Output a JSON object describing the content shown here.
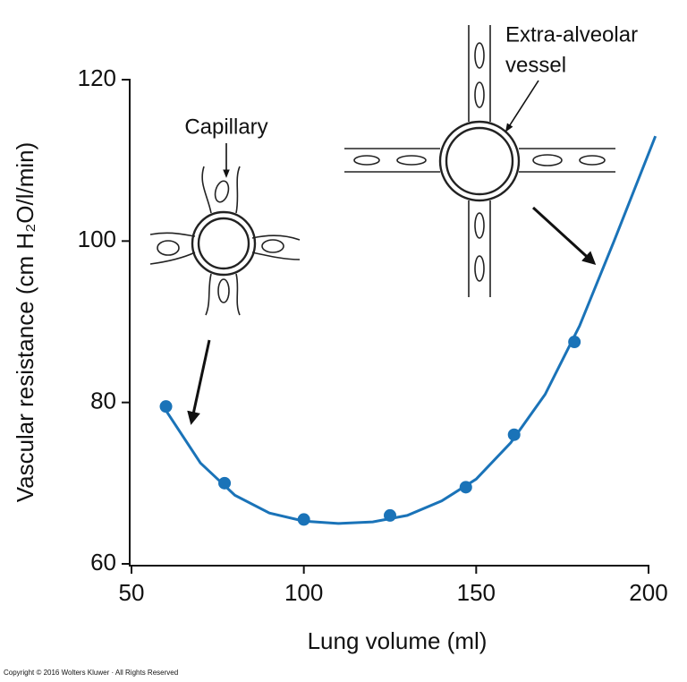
{
  "chart_data": {
    "type": "scatter",
    "xlabel": "Lung volume (ml)",
    "ylabel": "Vascular resistance (cm H₂O/l/min)",
    "xlim": [
      50,
      200
    ],
    "ylim": [
      60,
      120
    ],
    "xticks": [
      50,
      100,
      150,
      200
    ],
    "yticks": [
      60,
      80,
      100,
      120
    ],
    "points": {
      "color": "#1a73b8",
      "x": [
        60,
        77,
        100,
        125,
        147,
        161,
        178.5
      ],
      "values": [
        79.5,
        70,
        65.5,
        66,
        69.5,
        76,
        87.5
      ]
    },
    "curve": {
      "color": "#1a73b8",
      "x": [
        60,
        70,
        80,
        90,
        100,
        110,
        120,
        130,
        140,
        150,
        160,
        170,
        180,
        190,
        202
      ],
      "values": [
        79,
        72.5,
        68.5,
        66.3,
        65.3,
        65,
        65.2,
        66,
        67.8,
        70.5,
        75,
        81,
        89.5,
        100,
        113
      ]
    },
    "annotations": [
      "Capillary",
      "Extra-alveolar",
      "vessel"
    ]
  },
  "footer": "Copyright © 2016 Wolters Kluwer · All Rights Reserved"
}
